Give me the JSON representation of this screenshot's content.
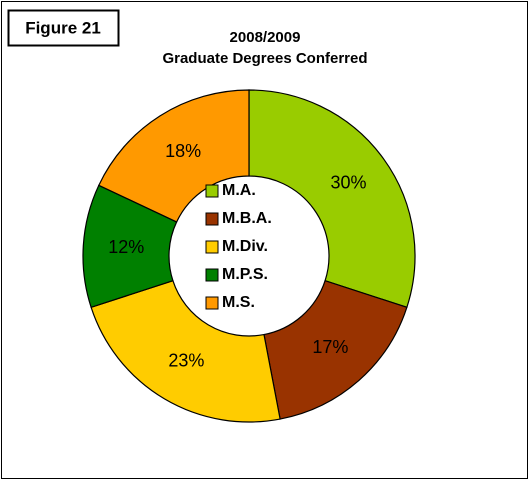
{
  "chart_data": {
    "type": "donut",
    "figure_label": "Figure 21",
    "title": "2008/2009",
    "subtitle": "Graduate Degrees Conferred",
    "categories": [
      "M.A.",
      "M.B.A.",
      "M.Div.",
      "M.P.S.",
      "M.S."
    ],
    "values": [
      30,
      17,
      23,
      12,
      18
    ],
    "value_labels": [
      "30%",
      "17%",
      "23%",
      "12%",
      "18%"
    ],
    "colors": [
      "#99cc00",
      "#993300",
      "#ffcc00",
      "#008000",
      "#ff9900"
    ]
  }
}
